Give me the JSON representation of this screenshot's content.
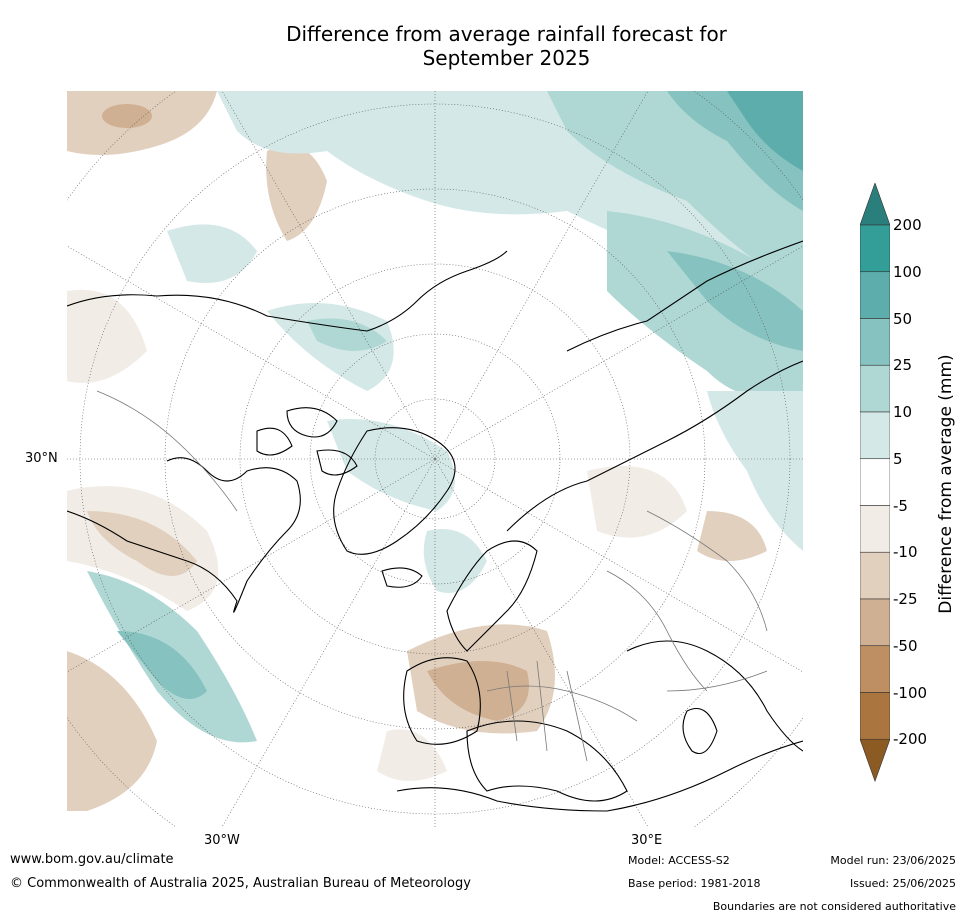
{
  "map": {
    "title_line1": "Difference from average rainfall forecast for",
    "title_line2": "September 2025",
    "projection": "north polar stereographic",
    "axis_labels": {
      "lat_30N": "30°N",
      "lon_30W": "30°W",
      "lon_30E": "30°E"
    },
    "colorbar": {
      "title": "Difference from average (mm)",
      "ticks": [
        "200",
        "100",
        "50",
        "25",
        "10",
        "5",
        "-5",
        "-10",
        "-25",
        "-50",
        "-100",
        "-200"
      ],
      "colors": [
        "#2a7f7d",
        "#339d98",
        "#5cadab",
        "#86c2bf",
        "#afd8d5",
        "#d4e9e7",
        "#ffffff",
        "#f1ece6",
        "#e2d0bf",
        "#cfb092",
        "#be8f63",
        "#aa753f",
        "#8c5a23"
      ],
      "extend": "both"
    },
    "footer": {
      "url": "www.bom.gov.au/climate",
      "copyright": "© Commonwealth of Australia 2025, Australian Bureau of Meteorology",
      "model": "Model: ACCESS-S2",
      "base_period": "Base period: 1981-2018",
      "model_run": "Model run: 23/06/2025",
      "issued": "Issued: 25/06/2025",
      "disclaimer": "Boundaries are not considered authoritative"
    }
  }
}
